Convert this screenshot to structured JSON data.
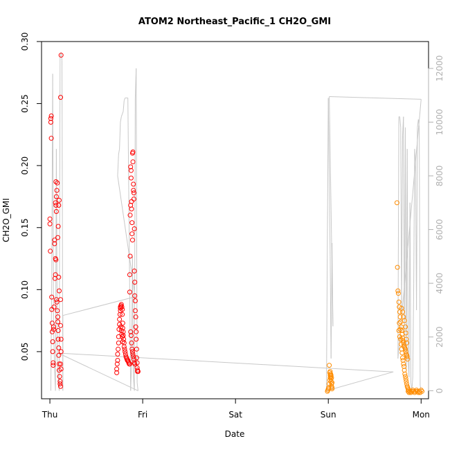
{
  "chart_data": {
    "type": "scatter",
    "title": "ATOM2 Northeast_Pacific_1 CH2O_GMI",
    "xlabel": "Date",
    "ylabel": "CH2O_GMI",
    "x_ticks": [
      "Thu",
      "Fri",
      "Sat",
      "Sun",
      "Mon"
    ],
    "xlim": [
      -0.09,
      4.08
    ],
    "ylim": [
      0.012,
      0.3
    ],
    "y_ticks": [
      0.05,
      0.1,
      0.15,
      0.2,
      0.25,
      0.3
    ],
    "y_tick_labels": [
      "0.05",
      "0.10",
      "0.15",
      "0.20",
      "0.25",
      "0.30"
    ],
    "y2lim": [
      -300,
      13000
    ],
    "y2_ticks": [
      0,
      2000,
      4000,
      6000,
      8000,
      10000,
      12000
    ],
    "y2_tick_labels": [
      "0",
      "2000",
      "4000",
      "6000",
      "8000",
      "10000",
      "12000"
    ],
    "grid": false,
    "legend": "none",
    "colors": {
      "series_red": "#ff0000",
      "series_orange": "#ff8c00",
      "altitude_line": "#c8c8c8",
      "axis": "#000000",
      "right_axis": "#b0b0b0"
    },
    "series": [
      {
        "color": "#ff0000",
        "marker": "open-circle",
        "points": [
          [
            0.0,
            0.157
          ],
          [
            0.0,
            0.153
          ],
          [
            0.005,
            0.131
          ],
          [
            0.01,
            0.235
          ],
          [
            0.01,
            0.238
          ],
          [
            0.015,
            0.24
          ],
          [
            0.015,
            0.222
          ],
          [
            0.02,
            0.094
          ],
          [
            0.02,
            0.084
          ],
          [
            0.025,
            0.073
          ],
          [
            0.025,
            0.066
          ],
          [
            0.03,
            0.058
          ],
          [
            0.03,
            0.05
          ],
          [
            0.035,
            0.041
          ],
          [
            0.035,
            0.039
          ],
          [
            0.04,
            0.068
          ],
          [
            0.04,
            0.07
          ],
          [
            0.045,
            0.086
          ],
          [
            0.05,
            0.137
          ],
          [
            0.05,
            0.14
          ],
          [
            0.055,
            0.109
          ],
          [
            0.06,
            0.112
          ],
          [
            0.06,
            0.125
          ],
          [
            0.065,
            0.124
          ],
          [
            0.06,
            0.17
          ],
          [
            0.065,
            0.168
          ],
          [
            0.07,
            0.163
          ],
          [
            0.065,
            0.187
          ],
          [
            0.07,
            0.175
          ],
          [
            0.075,
            0.18
          ],
          [
            0.08,
            0.186
          ],
          [
            0.07,
            0.092
          ],
          [
            0.075,
            0.09
          ],
          [
            0.08,
            0.083
          ],
          [
            0.085,
            0.078
          ],
          [
            0.085,
            0.074
          ],
          [
            0.09,
            0.067
          ],
          [
            0.09,
            0.06
          ],
          [
            0.095,
            0.053
          ],
          [
            0.095,
            0.047
          ],
          [
            0.1,
            0.04
          ],
          [
            0.1,
            0.035
          ],
          [
            0.105,
            0.03
          ],
          [
            0.11,
            0.026
          ],
          [
            0.11,
            0.024
          ],
          [
            0.115,
            0.022
          ],
          [
            0.095,
            0.11
          ],
          [
            0.1,
            0.099
          ],
          [
            0.085,
            0.142
          ],
          [
            0.09,
            0.151
          ],
          [
            0.095,
            0.168
          ],
          [
            0.1,
            0.172
          ],
          [
            0.12,
            0.289
          ],
          [
            0.115,
            0.255
          ],
          [
            0.115,
            0.092
          ],
          [
            0.115,
            0.071
          ],
          [
            0.12,
            0.06
          ],
          [
            0.12,
            0.05
          ],
          [
            0.115,
            0.04
          ],
          [
            0.12,
            0.036
          ],
          [
            0.72,
            0.033
          ],
          [
            0.72,
            0.036
          ],
          [
            0.725,
            0.04
          ],
          [
            0.73,
            0.043
          ],
          [
            0.73,
            0.048
          ],
          [
            0.735,
            0.052
          ],
          [
            0.74,
            0.057
          ],
          [
            0.74,
            0.062
          ],
          [
            0.745,
            0.068
          ],
          [
            0.75,
            0.072
          ],
          [
            0.75,
            0.076
          ],
          [
            0.755,
            0.08
          ],
          [
            0.76,
            0.083
          ],
          [
            0.76,
            0.086
          ],
          [
            0.765,
            0.087
          ],
          [
            0.77,
            0.088
          ],
          [
            0.775,
            0.086
          ],
          [
            0.78,
            0.084
          ],
          [
            0.78,
            0.08
          ],
          [
            0.785,
            0.073
          ],
          [
            0.785,
            0.069
          ],
          [
            0.79,
            0.066
          ],
          [
            0.79,
            0.063
          ],
          [
            0.795,
            0.06
          ],
          [
            0.8,
            0.057
          ],
          [
            0.8,
            0.054
          ],
          [
            0.805,
            0.052
          ],
          [
            0.81,
            0.05
          ],
          [
            0.815,
            0.048
          ],
          [
            0.82,
            0.046
          ],
          [
            0.825,
            0.045
          ],
          [
            0.83,
            0.044
          ],
          [
            0.835,
            0.043
          ],
          [
            0.84,
            0.043
          ],
          [
            0.845,
            0.042
          ],
          [
            0.85,
            0.041
          ],
          [
            0.855,
            0.04
          ],
          [
            0.86,
            0.04
          ],
          [
            0.76,
            0.085
          ],
          [
            0.765,
            0.07
          ],
          [
            0.77,
            0.067
          ],
          [
            0.775,
            0.064
          ],
          [
            0.78,
            0.062
          ],
          [
            0.785,
            0.058
          ],
          [
            0.86,
            0.112
          ],
          [
            0.86,
            0.098
          ],
          [
            0.865,
            0.127
          ],
          [
            0.865,
            0.16
          ],
          [
            0.87,
            0.168
          ],
          [
            0.87,
            0.199
          ],
          [
            0.875,
            0.196
          ],
          [
            0.875,
            0.19
          ],
          [
            0.88,
            0.171
          ],
          [
            0.88,
            0.165
          ],
          [
            0.885,
            0.154
          ],
          [
            0.885,
            0.145
          ],
          [
            0.89,
            0.14
          ],
          [
            0.89,
            0.21
          ],
          [
            0.895,
            0.211
          ],
          [
            0.895,
            0.203
          ],
          [
            0.9,
            0.185
          ],
          [
            0.9,
            0.18
          ],
          [
            0.905,
            0.178
          ],
          [
            0.905,
            0.173
          ],
          [
            0.91,
            0.149
          ],
          [
            0.91,
            0.115
          ],
          [
            0.915,
            0.106
          ],
          [
            0.915,
            0.095
          ],
          [
            0.92,
            0.091
          ],
          [
            0.92,
            0.083
          ],
          [
            0.925,
            0.078
          ],
          [
            0.925,
            0.07
          ],
          [
            0.93,
            0.066
          ],
          [
            0.93,
            0.06
          ],
          [
            0.935,
            0.052
          ],
          [
            0.935,
            0.045
          ],
          [
            0.94,
            0.041
          ],
          [
            0.94,
            0.037
          ],
          [
            0.945,
            0.035
          ],
          [
            0.945,
            0.034
          ],
          [
            0.95,
            0.034
          ],
          [
            0.87,
            0.066
          ],
          [
            0.875,
            0.063
          ],
          [
            0.88,
            0.057
          ],
          [
            0.885,
            0.052
          ],
          [
            0.89,
            0.05
          ],
          [
            0.895,
            0.048
          ],
          [
            0.9,
            0.046
          ],
          [
            0.905,
            0.044
          ],
          [
            0.91,
            0.041
          ],
          [
            0.915,
            0.04
          ]
        ]
      },
      {
        "color": "#ff8c00",
        "marker": "open-circle",
        "points": [
          [
            2.99,
            0.018
          ],
          [
            2.995,
            0.019
          ],
          [
            3.0,
            0.02
          ],
          [
            3.005,
            0.021
          ],
          [
            3.01,
            0.024
          ],
          [
            3.015,
            0.027
          ],
          [
            3.02,
            0.029
          ],
          [
            3.02,
            0.031
          ],
          [
            3.025,
            0.032
          ],
          [
            3.025,
            0.03
          ],
          [
            3.03,
            0.028
          ],
          [
            3.03,
            0.026
          ],
          [
            3.035,
            0.024
          ],
          [
            3.035,
            0.022
          ],
          [
            3.04,
            0.021
          ],
          [
            3.04,
            0.02
          ],
          [
            3.015,
            0.033
          ],
          [
            3.02,
            0.034
          ],
          [
            3.01,
            0.039
          ],
          [
            3.03,
            0.031
          ],
          [
            3.035,
            0.029
          ],
          [
            3.04,
            0.025
          ],
          [
            3.74,
            0.17
          ],
          [
            3.745,
            0.118
          ],
          [
            3.75,
            0.099
          ],
          [
            3.755,
            0.097
          ],
          [
            3.76,
            0.09
          ],
          [
            3.765,
            0.086
          ],
          [
            3.77,
            0.082
          ],
          [
            3.775,
            0.078
          ],
          [
            3.78,
            0.074
          ],
          [
            3.785,
            0.07
          ],
          [
            3.79,
            0.067
          ],
          [
            3.795,
            0.064
          ],
          [
            3.8,
            0.061
          ],
          [
            3.805,
            0.059
          ],
          [
            3.81,
            0.057
          ],
          [
            3.815,
            0.055
          ],
          [
            3.82,
            0.054
          ],
          [
            3.825,
            0.053
          ],
          [
            3.83,
            0.052
          ],
          [
            3.835,
            0.05
          ],
          [
            3.84,
            0.048
          ],
          [
            3.845,
            0.047
          ],
          [
            3.85,
            0.046
          ],
          [
            3.855,
            0.044
          ],
          [
            3.76,
            0.067
          ],
          [
            3.765,
            0.073
          ],
          [
            3.77,
            0.062
          ],
          [
            3.775,
            0.068
          ],
          [
            3.78,
            0.06
          ],
          [
            3.785,
            0.056
          ],
          [
            3.79,
            0.052
          ],
          [
            3.795,
            0.049
          ],
          [
            3.8,
            0.045
          ],
          [
            3.805,
            0.043
          ],
          [
            3.81,
            0.04
          ],
          [
            3.815,
            0.038
          ],
          [
            3.82,
            0.035
          ],
          [
            3.825,
            0.032
          ],
          [
            3.83,
            0.03
          ],
          [
            3.835,
            0.028
          ],
          [
            3.84,
            0.026
          ],
          [
            3.845,
            0.024
          ],
          [
            3.85,
            0.022
          ],
          [
            3.855,
            0.021
          ],
          [
            3.86,
            0.02
          ],
          [
            3.865,
            0.019
          ],
          [
            3.79,
            0.085
          ],
          [
            3.8,
            0.082
          ],
          [
            3.81,
            0.078
          ],
          [
            3.82,
            0.075
          ],
          [
            3.83,
            0.07
          ],
          [
            3.835,
            0.065
          ],
          [
            3.84,
            0.06
          ],
          [
            3.845,
            0.057
          ],
          [
            3.86,
            0.018
          ],
          [
            3.87,
            0.017
          ],
          [
            3.88,
            0.018
          ],
          [
            3.89,
            0.017
          ],
          [
            3.9,
            0.018
          ],
          [
            3.91,
            0.019
          ],
          [
            3.92,
            0.018
          ],
          [
            3.93,
            0.017
          ],
          [
            3.94,
            0.018
          ],
          [
            3.95,
            0.019
          ],
          [
            3.96,
            0.018
          ],
          [
            3.97,
            0.017
          ],
          [
            3.98,
            0.018
          ],
          [
            3.99,
            0.017
          ],
          [
            4.0,
            0.019
          ],
          [
            4.01,
            0.018
          ]
        ]
      }
    ],
    "altitude": {
      "color": "#c8c8c8",
      "points": [
        [
          0.01,
          0
        ],
        [
          0.02,
          4000
        ],
        [
          0.03,
          11800
        ],
        [
          0.04,
          2400
        ],
        [
          0.05,
          800
        ],
        [
          0.06,
          0
        ],
        [
          0.07,
          9000
        ],
        [
          0.08,
          1200
        ],
        [
          0.09,
          500
        ],
        [
          0.1,
          0
        ],
        [
          0.11,
          12400
        ],
        [
          0.12,
          12600
        ],
        [
          0.13,
          12300
        ],
        [
          0.14,
          0
        ],
        [
          0.14,
          2800
        ],
        [
          0.92,
          3500
        ],
        [
          0.73,
          8000
        ],
        [
          0.74,
          8800
        ],
        [
          0.75,
          9000
        ],
        [
          0.76,
          10000
        ],
        [
          0.77,
          10200
        ],
        [
          0.78,
          10300
        ],
        [
          0.79,
          10400
        ],
        [
          0.8,
          10800
        ],
        [
          0.81,
          10900
        ],
        [
          0.82,
          10900
        ],
        [
          0.84,
          10900
        ],
        [
          0.87,
          0
        ],
        [
          0.88,
          1000
        ],
        [
          0.89,
          5000
        ],
        [
          0.9,
          500
        ],
        [
          0.91,
          0
        ],
        [
          0.92,
          10900
        ],
        [
          0.93,
          12000
        ],
        [
          0.94,
          300
        ],
        [
          0.95,
          0
        ],
        [
          0.09,
          1400
        ],
        [
          3.7,
          700
        ],
        [
          2.98,
          0
        ],
        [
          3.0,
          10900
        ],
        [
          3.02,
          5000
        ],
        [
          3.03,
          1200
        ],
        [
          3.04,
          5500
        ],
        [
          3.05,
          2400
        ],
        [
          3.01,
          10950
        ],
        [
          4.0,
          10850
        ],
        [
          3.75,
          1200
        ],
        [
          3.76,
          10200
        ],
        [
          3.77,
          10200
        ],
        [
          3.78,
          9800
        ],
        [
          3.79,
          3000
        ],
        [
          3.8,
          9500
        ],
        [
          3.81,
          10200
        ],
        [
          3.82,
          1500
        ],
        [
          3.83,
          9800
        ],
        [
          3.84,
          800
        ],
        [
          3.85,
          9000
        ],
        [
          3.86,
          1200
        ],
        [
          3.87,
          500
        ],
        [
          3.88,
          7000
        ],
        [
          3.89,
          300
        ],
        [
          3.9,
          0
        ],
        [
          3.91,
          500
        ],
        [
          3.92,
          4000
        ],
        [
          3.93,
          9000
        ],
        [
          3.94,
          8500
        ],
        [
          3.95,
          3000
        ],
        [
          3.96,
          9800
        ],
        [
          3.97,
          10100
        ],
        [
          3.98,
          9800
        ],
        [
          3.99,
          200
        ],
        [
          4.0,
          0
        ]
      ]
    }
  }
}
